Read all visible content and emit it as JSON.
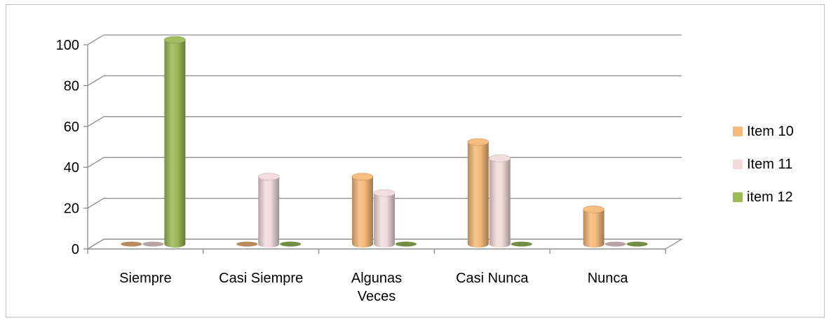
{
  "chart_data": {
    "type": "bar",
    "style": "3d-cylinder",
    "categories": [
      "Siempre",
      "Casi Siempre",
      "Algunas Veces",
      "Casi Nunca",
      "Nunca"
    ],
    "series": [
      {
        "name": "Item 10",
        "values": [
          0,
          0,
          33,
          50,
          17
        ],
        "color": "#f6b97a"
      },
      {
        "name": "Item 11",
        "values": [
          0,
          33,
          25,
          42,
          0
        ],
        "color": "#f2dcdb"
      },
      {
        "name": "item 12",
        "values": [
          100,
          0,
          0,
          0,
          0
        ],
        "color": "#9bbb59"
      }
    ],
    "ylim": [
      0,
      100
    ],
    "yticks": [
      0,
      20,
      40,
      60,
      80,
      100
    ],
    "grid": true,
    "legend_position": "right"
  }
}
